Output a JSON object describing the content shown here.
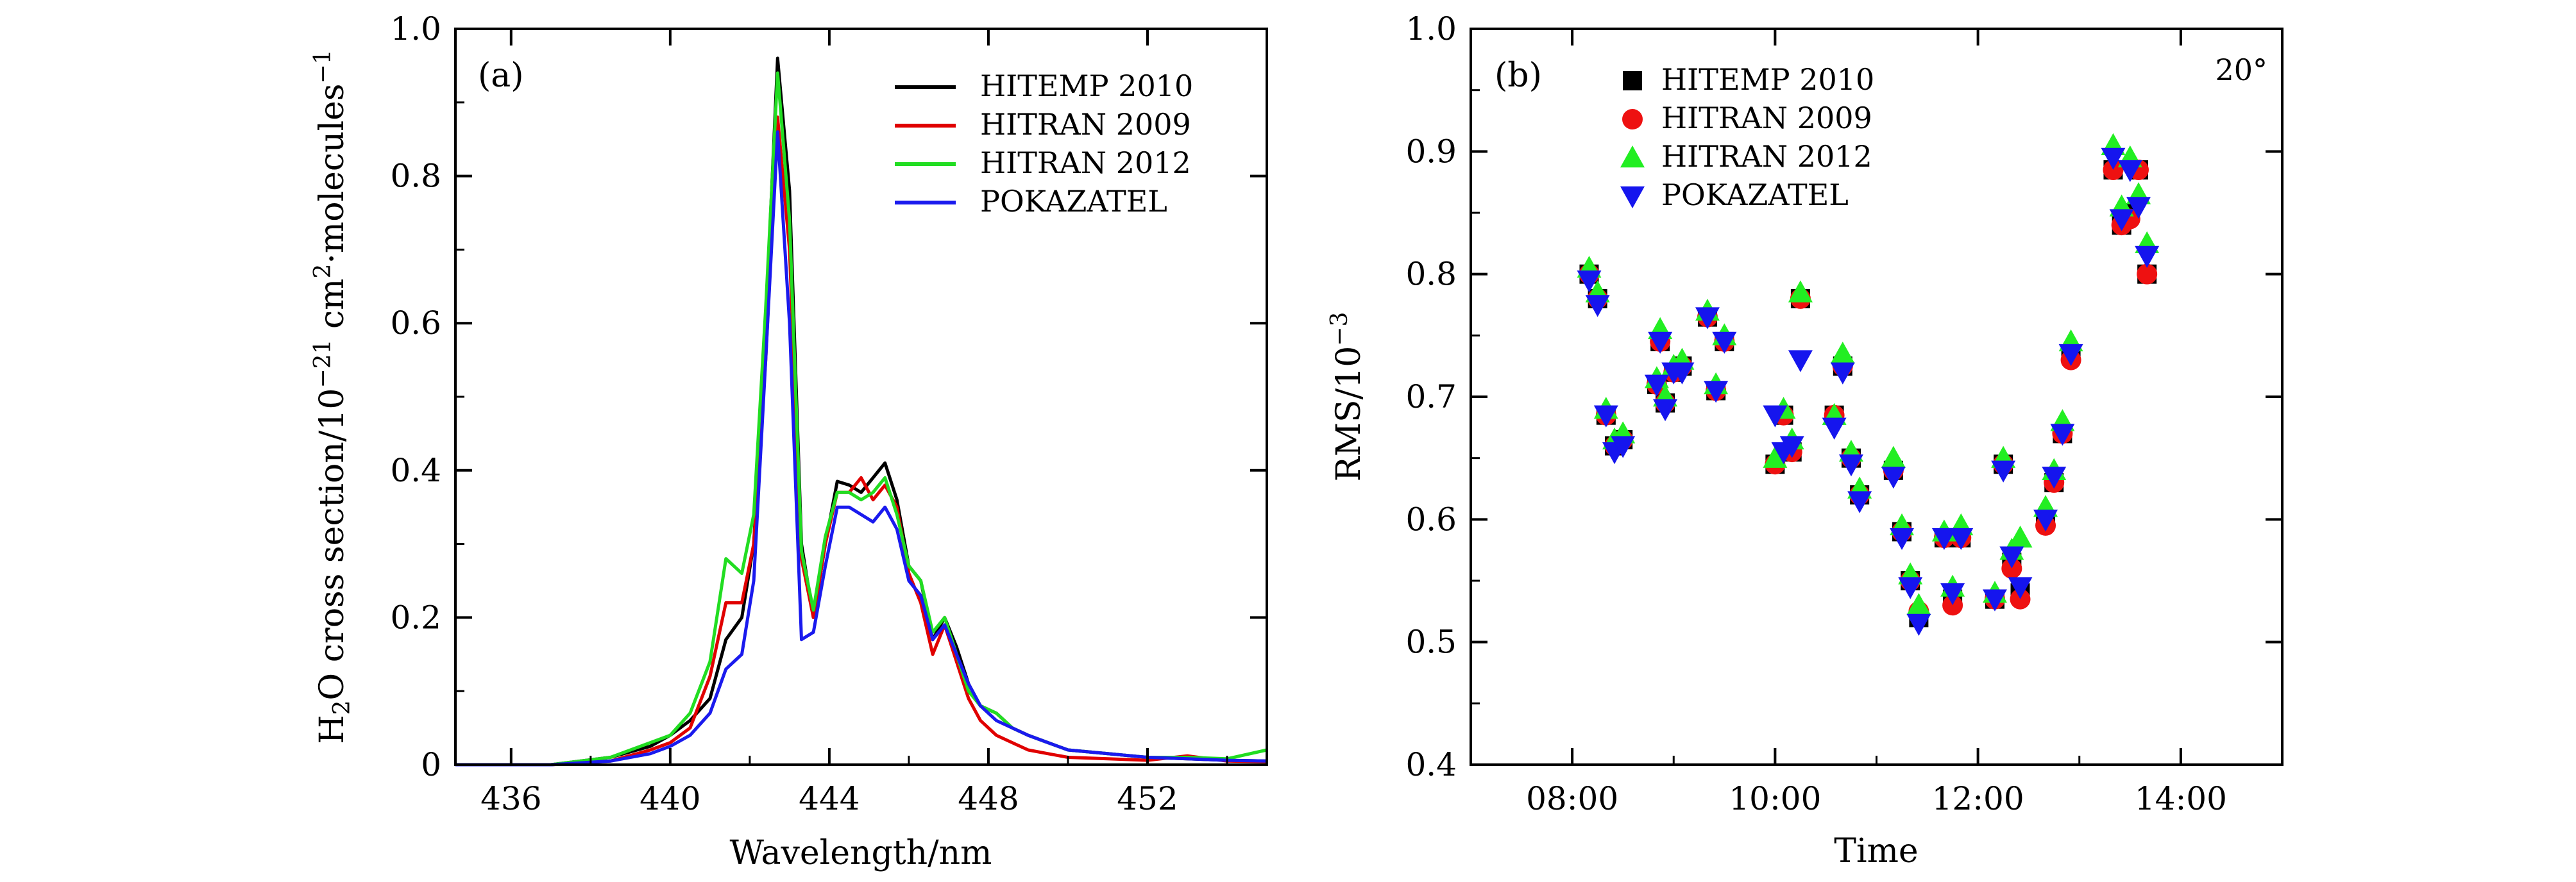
{
  "chart_data": [
    {
      "type": "line",
      "panel_label": "(a)",
      "xlabel": "Wavelength/nm",
      "ylabel_parts": {
        "prefix": "H",
        "sub": "2",
        "mid": "O cross section/10",
        "sup1": "−21",
        "mid2": " cm",
        "sup2": "2",
        "mid3": "·molecules",
        "sup3": "−1"
      },
      "xlim": [
        434.6,
        455
      ],
      "ylim": [
        0,
        1.0
      ],
      "xticks": [
        436,
        440,
        444,
        448,
        452
      ],
      "yticks": [
        0,
        0.2,
        0.4,
        0.6,
        0.8,
        1.0
      ],
      "xtick_labels": [
        "436",
        "440",
        "444",
        "448",
        "452"
      ],
      "ytick_labels": [
        "0",
        "0.2",
        "0.4",
        "0.6",
        "0.8",
        "1.0"
      ],
      "legend_position": "top-right",
      "series": [
        {
          "name": "HITEMP 2010",
          "color": "#000000",
          "x": [
            434.6,
            437,
            438.5,
            439.5,
            440,
            440.5,
            441,
            441.4,
            441.8,
            442.1,
            442.4,
            442.7,
            443.0,
            443.3,
            443.6,
            443.9,
            444.2,
            444.5,
            444.8,
            445.1,
            445.4,
            445.7,
            446.0,
            446.3,
            446.6,
            446.9,
            447.2,
            447.5,
            447.8,
            448.2,
            448.6,
            449.0,
            449.5,
            450,
            451,
            452,
            453,
            454,
            455
          ],
          "y": [
            0.0,
            0.0,
            0.01,
            0.025,
            0.04,
            0.06,
            0.09,
            0.17,
            0.2,
            0.3,
            0.6,
            0.96,
            0.78,
            0.3,
            0.2,
            0.3,
            0.385,
            0.38,
            0.37,
            0.39,
            0.41,
            0.36,
            0.27,
            0.25,
            0.17,
            0.2,
            0.16,
            0.11,
            0.08,
            0.07,
            0.05,
            0.04,
            0.03,
            0.02,
            0.015,
            0.01,
            0.008,
            0.006,
            0.005
          ]
        },
        {
          "name": "HITRAN 2009",
          "color": "#e00000",
          "x": [
            434.6,
            437,
            438.5,
            439.5,
            440,
            440.5,
            441,
            441.4,
            441.8,
            442.1,
            442.4,
            442.7,
            443.0,
            443.3,
            443.6,
            443.9,
            444.2,
            444.5,
            444.8,
            445.1,
            445.4,
            445.7,
            446.0,
            446.3,
            446.6,
            446.9,
            447.2,
            447.5,
            447.8,
            448.2,
            448.6,
            449.0,
            449.5,
            450,
            451,
            452,
            453,
            454,
            455
          ],
          "y": [
            0.0,
            0.0,
            0.005,
            0.02,
            0.03,
            0.05,
            0.12,
            0.22,
            0.22,
            0.3,
            0.55,
            0.88,
            0.7,
            0.28,
            0.2,
            0.3,
            0.37,
            0.37,
            0.39,
            0.36,
            0.38,
            0.35,
            0.26,
            0.22,
            0.15,
            0.19,
            0.14,
            0.09,
            0.06,
            0.04,
            0.03,
            0.02,
            0.015,
            0.01,
            0.008,
            0.006,
            0.012,
            0.005,
            0.004
          ]
        },
        {
          "name": "HITRAN 2012",
          "color": "#22dd22",
          "x": [
            434.6,
            437,
            438.5,
            439.5,
            440,
            440.5,
            441,
            441.4,
            441.8,
            442.1,
            442.4,
            442.7,
            443.0,
            443.3,
            443.6,
            443.9,
            444.2,
            444.5,
            444.8,
            445.1,
            445.4,
            445.7,
            446.0,
            446.3,
            446.6,
            446.9,
            447.2,
            447.5,
            447.8,
            448.2,
            448.6,
            449.0,
            449.5,
            450,
            451,
            452,
            453,
            454,
            455
          ],
          "y": [
            0.0,
            0.0,
            0.01,
            0.03,
            0.04,
            0.07,
            0.14,
            0.28,
            0.26,
            0.34,
            0.62,
            0.94,
            0.74,
            0.29,
            0.21,
            0.31,
            0.37,
            0.37,
            0.36,
            0.37,
            0.39,
            0.34,
            0.27,
            0.25,
            0.18,
            0.2,
            0.15,
            0.1,
            0.08,
            0.07,
            0.05,
            0.04,
            0.03,
            0.02,
            0.015,
            0.01,
            0.01,
            0.008,
            0.02
          ]
        },
        {
          "name": "POKAZATEL",
          "color": "#1a1aee",
          "x": [
            434.6,
            437,
            438.5,
            439.5,
            440,
            440.5,
            441,
            441.4,
            441.8,
            442.1,
            442.4,
            442.7,
            443.0,
            443.3,
            443.6,
            443.9,
            444.2,
            444.5,
            444.8,
            445.1,
            445.4,
            445.7,
            446.0,
            446.3,
            446.6,
            446.9,
            447.2,
            447.5,
            447.8,
            448.2,
            448.6,
            449.0,
            449.5,
            450,
            451,
            452,
            453,
            454,
            455
          ],
          "y": [
            0.0,
            0.0,
            0.005,
            0.015,
            0.025,
            0.04,
            0.07,
            0.13,
            0.15,
            0.25,
            0.55,
            0.86,
            0.6,
            0.17,
            0.18,
            0.27,
            0.35,
            0.35,
            0.34,
            0.33,
            0.35,
            0.32,
            0.25,
            0.23,
            0.17,
            0.19,
            0.15,
            0.11,
            0.08,
            0.06,
            0.05,
            0.04,
            0.03,
            0.02,
            0.015,
            0.01,
            0.008,
            0.006,
            0.005
          ]
        }
      ]
    },
    {
      "type": "scatter",
      "panel_label": "(b)",
      "annotation": "20°",
      "xlabel": "Time",
      "ylabel_parts": {
        "prefix": "RMS/10",
        "sup": "−3"
      },
      "xlim": [
        "07:00",
        "15:00"
      ],
      "ylim": [
        0.4,
        1.0
      ],
      "xticks": [
        "08:00",
        "10:00",
        "12:00",
        "14:00"
      ],
      "yticks": [
        0.4,
        0.5,
        0.6,
        0.7,
        0.8,
        0.9,
        1.0
      ],
      "xtick_labels": [
        "08:00",
        "10:00",
        "12:00",
        "14:00"
      ],
      "ytick_labels": [
        "0.4",
        "0.5",
        "0.6",
        "0.7",
        "0.8",
        "0.9",
        "1.0"
      ],
      "legend_position": "top-left",
      "x": [
        "08:10",
        "08:15",
        "08:20",
        "08:25",
        "08:30",
        "08:50",
        "08:52",
        "08:55",
        "09:00",
        "09:05",
        "09:20",
        "09:25",
        "09:30",
        "10:00",
        "10:05",
        "10:10",
        "10:15",
        "10:35",
        "10:40",
        "10:45",
        "10:50",
        "11:10",
        "11:15",
        "11:20",
        "11:25",
        "11:40",
        "11:45",
        "11:50",
        "12:10",
        "12:15",
        "12:20",
        "12:25",
        "12:40",
        "12:45",
        "12:50",
        "12:55",
        "13:20",
        "13:25",
        "13:30",
        "13:35",
        "13:40"
      ],
      "series": [
        {
          "name": "HITEMP 2010",
          "marker": "square",
          "color": "#000000",
          "values": [
            0.8,
            0.78,
            0.685,
            0.66,
            0.665,
            0.71,
            0.745,
            0.695,
            0.72,
            0.725,
            0.765,
            0.705,
            0.745,
            0.645,
            0.685,
            0.655,
            0.78,
            0.685,
            0.725,
            0.65,
            0.62,
            0.64,
            0.59,
            0.55,
            0.52,
            0.585,
            0.535,
            0.585,
            0.535,
            0.645,
            0.565,
            0.54,
            0.6,
            0.63,
            0.67,
            0.735,
            0.885,
            0.84,
            0.85,
            0.885,
            0.8
          ]
        },
        {
          "name": "HITRAN 2009",
          "marker": "circle",
          "color": "#ee1111",
          "values": [
            0.8,
            0.78,
            0.685,
            0.66,
            0.665,
            0.71,
            0.745,
            0.695,
            0.72,
            0.725,
            0.765,
            0.705,
            0.745,
            0.645,
            0.685,
            0.655,
            0.78,
            0.685,
            0.725,
            0.65,
            0.62,
            0.64,
            0.59,
            0.55,
            0.525,
            0.585,
            0.53,
            0.585,
            0.535,
            0.645,
            0.56,
            0.535,
            0.595,
            0.63,
            0.67,
            0.73,
            0.885,
            0.84,
            0.845,
            0.885,
            0.8
          ]
        },
        {
          "name": "HITRAN 2012",
          "marker": "triangle-up",
          "color": "#22ee22",
          "values": [
            0.805,
            0.785,
            0.69,
            0.665,
            0.67,
            0.715,
            0.755,
            0.7,
            0.725,
            0.73,
            0.77,
            0.71,
            0.75,
            0.65,
            0.69,
            0.665,
            0.785,
            0.685,
            0.735,
            0.655,
            0.625,
            0.65,
            0.595,
            0.555,
            0.53,
            0.59,
            0.545,
            0.595,
            0.54,
            0.65,
            0.575,
            0.585,
            0.61,
            0.64,
            0.68,
            0.745,
            0.905,
            0.855,
            0.895,
            0.865,
            0.825
          ]
        },
        {
          "name": "POKAZATEL",
          "marker": "triangle-down",
          "color": "#1515ee",
          "values": [
            0.795,
            0.775,
            0.685,
            0.655,
            0.66,
            0.71,
            0.745,
            0.69,
            0.72,
            0.72,
            0.765,
            0.705,
            0.745,
            0.685,
            0.655,
            0.66,
            0.73,
            0.675,
            0.72,
            0.645,
            0.615,
            0.635,
            0.585,
            0.545,
            0.515,
            0.585,
            0.54,
            0.585,
            0.535,
            0.64,
            0.57,
            0.545,
            0.6,
            0.635,
            0.67,
            0.735,
            0.895,
            0.845,
            0.885,
            0.855,
            0.815
          ]
        }
      ]
    }
  ]
}
